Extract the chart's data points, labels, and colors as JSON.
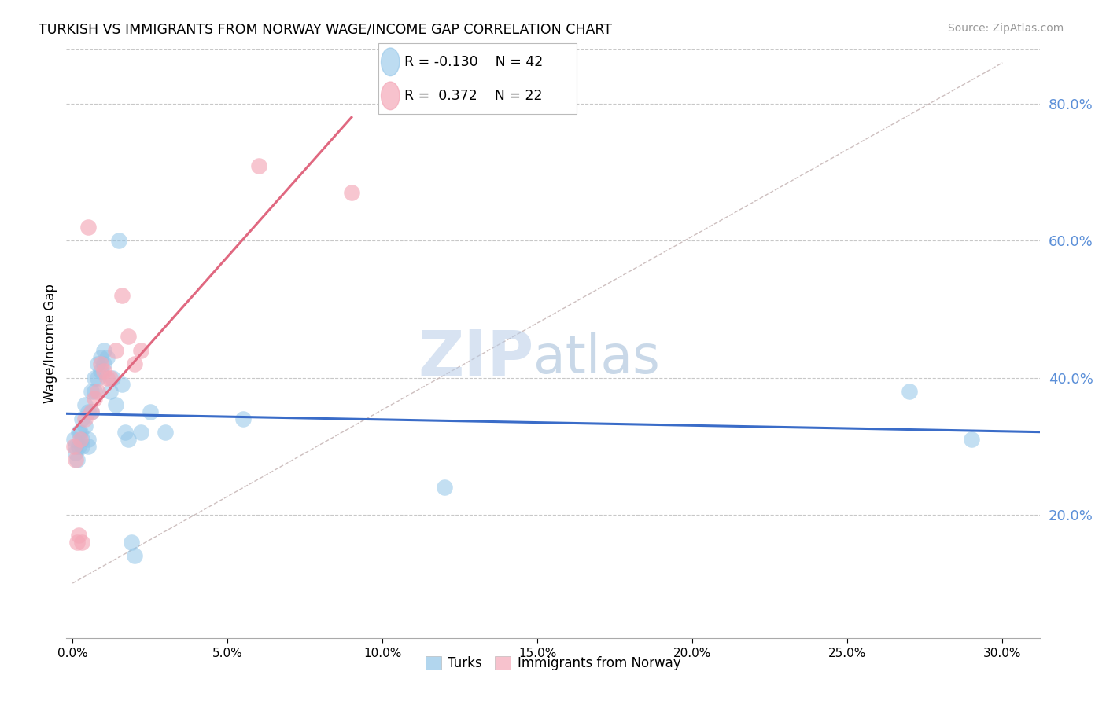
{
  "title": "TURKISH VS IMMIGRANTS FROM NORWAY WAGE/INCOME GAP CORRELATION CHART",
  "source": "Source: ZipAtlas.com",
  "xlabel_ticks": [
    0.0,
    0.05,
    0.1,
    0.15,
    0.2,
    0.25,
    0.3
  ],
  "ylabel_ticks": [
    0.2,
    0.4,
    0.6,
    0.8
  ],
  "xmin": -0.002,
  "xmax": 0.312,
  "ymin": 0.02,
  "ymax": 0.88,
  "turks_x": [
    0.0005,
    0.001,
    0.001,
    0.0015,
    0.002,
    0.002,
    0.0025,
    0.003,
    0.003,
    0.003,
    0.004,
    0.004,
    0.005,
    0.005,
    0.005,
    0.006,
    0.006,
    0.007,
    0.007,
    0.008,
    0.008,
    0.009,
    0.009,
    0.01,
    0.01,
    0.011,
    0.012,
    0.013,
    0.014,
    0.015,
    0.016,
    0.017,
    0.018,
    0.019,
    0.02,
    0.022,
    0.025,
    0.03,
    0.055,
    0.12,
    0.27,
    0.29
  ],
  "turks_y": [
    0.31,
    0.29,
    0.3,
    0.28,
    0.32,
    0.3,
    0.32,
    0.34,
    0.31,
    0.3,
    0.36,
    0.33,
    0.35,
    0.31,
    0.3,
    0.38,
    0.35,
    0.4,
    0.38,
    0.42,
    0.4,
    0.43,
    0.41,
    0.44,
    0.42,
    0.43,
    0.38,
    0.4,
    0.36,
    0.6,
    0.39,
    0.32,
    0.31,
    0.16,
    0.14,
    0.32,
    0.35,
    0.32,
    0.34,
    0.24,
    0.38,
    0.31
  ],
  "norway_x": [
    0.0005,
    0.001,
    0.0015,
    0.002,
    0.0025,
    0.003,
    0.004,
    0.005,
    0.006,
    0.007,
    0.008,
    0.009,
    0.01,
    0.011,
    0.012,
    0.014,
    0.016,
    0.018,
    0.02,
    0.022,
    0.06,
    0.09
  ],
  "norway_y": [
    0.3,
    0.28,
    0.16,
    0.17,
    0.31,
    0.16,
    0.34,
    0.62,
    0.35,
    0.37,
    0.38,
    0.42,
    0.41,
    0.4,
    0.4,
    0.44,
    0.52,
    0.46,
    0.42,
    0.44,
    0.71,
    0.67
  ],
  "turks_color": "#92C5E8",
  "norway_color": "#F4A8B8",
  "turks_line_color": "#3A6CC8",
  "norway_line_color": "#E06880",
  "diagonal_color": "#C8B8B8",
  "R_turks": -0.13,
  "N_turks": 42,
  "R_norway": 0.372,
  "N_norway": 22,
  "ylabel": "Wage/Income Gap",
  "watermark_zip": "ZIP",
  "watermark_atlas": "atlas",
  "legend_turks": "Turks",
  "legend_norway": "Immigrants from Norway"
}
